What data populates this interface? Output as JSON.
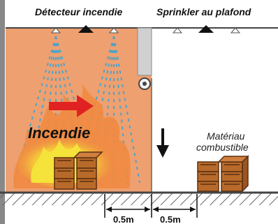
{
  "labels": {
    "detector": "Détecteur incendie",
    "sprinkler": "Sprinkler au plafond",
    "fire": "Incendie",
    "material_line1": "Matériau",
    "material_line2": "combustible",
    "distance_left": "0.5m",
    "distance_right": "0.5m"
  },
  "colors": {
    "fire_zone": "#eea070",
    "flame": "#f08a40",
    "flame_core": "#f5e23a",
    "wood": "#b86a2a",
    "arrow_red": "#e02222",
    "water": "#4aa3cc",
    "wall": "#d0d0d0",
    "ground_hatch": "#666666"
  }
}
